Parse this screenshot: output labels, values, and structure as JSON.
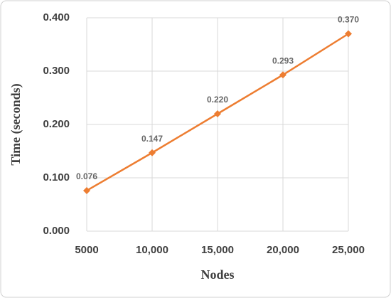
{
  "chart_data": {
    "type": "line",
    "x_label": "Nodes",
    "y_label": "Time (seconds)",
    "x": [
      5000,
      10000,
      15000,
      20000,
      25000
    ],
    "series": [
      {
        "name": "Time",
        "color": "#ED7D31",
        "values": [
          0.076,
          0.147,
          0.22,
          0.293,
          0.37
        ],
        "value_labels": [
          "0.076",
          "0.147",
          "0.220",
          "0.293",
          "0.370"
        ]
      }
    ],
    "xlim": [
      5000,
      25000
    ],
    "xticks": [
      5000,
      {
        "value": 10000,
        "label": "10,000"
      },
      {
        "value": 15000,
        "label": "15,000"
      },
      {
        "value": 20000,
        "label": "20,000"
      },
      {
        "value": 25000,
        "label": "25,000"
      }
    ],
    "ylim": [
      0,
      0.4
    ],
    "yticks": [
      {
        "value": 0,
        "label": "0.000"
      },
      {
        "value": 0.1,
        "label": "0.100"
      },
      {
        "value": 0.2,
        "label": "0.200"
      },
      {
        "value": 0.3,
        "label": "0.300"
      },
      {
        "value": 0.4,
        "label": "0.400"
      }
    ],
    "grid": true
  }
}
